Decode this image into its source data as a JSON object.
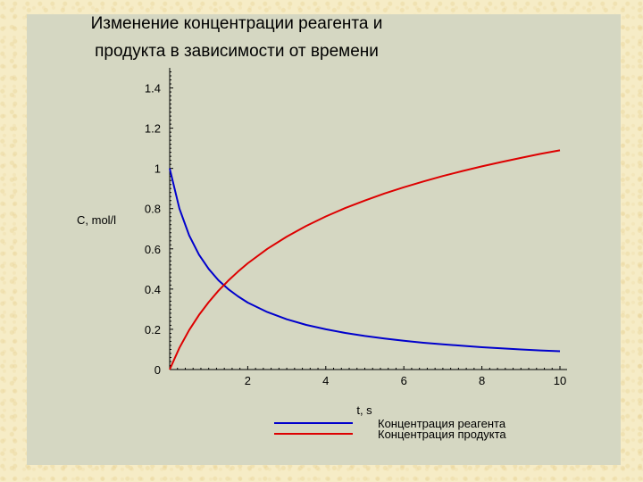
{
  "chart_data": {
    "type": "line",
    "title": [
      "Изменение концентрации реагента и",
      "продукта в зависимости от времени"
    ],
    "xlabel": "t, s",
    "ylabel": "C, mol/l",
    "xlim": [
      0,
      10
    ],
    "ylim": [
      0,
      1.5
    ],
    "x_ticks": [
      2,
      4,
      6,
      8,
      10
    ],
    "y_ticks": [
      0,
      0.2,
      0.4,
      0.6,
      0.8,
      1,
      1.2,
      1.4
    ],
    "origin_label": "0",
    "grid": false,
    "legend": "bottom",
    "x": [
      0,
      0.25,
      0.5,
      0.75,
      1,
      1.25,
      1.5,
      1.75,
      2,
      2.5,
      3,
      3.5,
      4,
      4.5,
      5,
      5.5,
      6,
      6.5,
      7,
      7.5,
      8,
      8.5,
      9,
      9.5,
      10
    ],
    "series": [
      {
        "name": "Концентрация реагента",
        "color": "#0000cc",
        "values": [
          1.0,
          0.8,
          0.667,
          0.571,
          0.5,
          0.444,
          0.4,
          0.364,
          0.333,
          0.286,
          0.25,
          0.222,
          0.2,
          0.182,
          0.167,
          0.154,
          0.143,
          0.133,
          0.125,
          0.118,
          0.111,
          0.105,
          0.1,
          0.095,
          0.091
        ]
      },
      {
        "name": "Концентрация продукта",
        "color": "#dd0000",
        "values": [
          0.0,
          0.108,
          0.196,
          0.271,
          0.335,
          0.392,
          0.442,
          0.487,
          0.528,
          0.6,
          0.661,
          0.714,
          0.761,
          0.803,
          0.84,
          0.875,
          0.906,
          0.935,
          0.962,
          0.987,
          1.01,
          1.032,
          1.052,
          1.072,
          1.09
        ]
      }
    ]
  }
}
